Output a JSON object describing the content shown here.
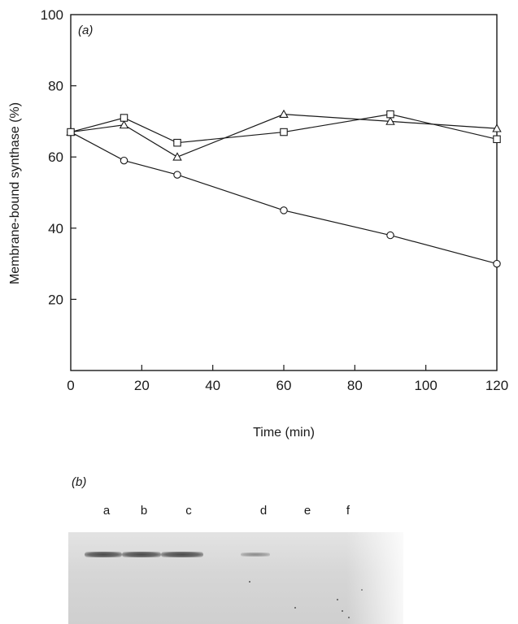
{
  "chart_data": {
    "type": "line",
    "panel_label": "(a)",
    "xlabel": "Time (min)",
    "ylabel": "Membrane-bound synthase (%)",
    "xlim": [
      0,
      120
    ],
    "ylim": [
      0,
      100
    ],
    "x_ticks": [
      0,
      20,
      40,
      60,
      80,
      100,
      120
    ],
    "y_ticks": [
      20,
      40,
      60,
      80,
      100
    ],
    "grid": false,
    "series": [
      {
        "marker": "circle",
        "x": [
          0,
          15,
          30,
          60,
          90,
          120
        ],
        "values": [
          67,
          59,
          55,
          45,
          38,
          30
        ]
      },
      {
        "marker": "triangle",
        "x": [
          0,
          15,
          30,
          60,
          90,
          120
        ],
        "values": [
          67,
          69,
          60,
          72,
          70,
          68
        ]
      },
      {
        "marker": "square",
        "x": [
          0,
          15,
          30,
          60,
          90,
          120
        ],
        "values": [
          67,
          71,
          64,
          67,
          72,
          65
        ]
      }
    ]
  },
  "panel_b": {
    "label": "(b)",
    "lanes": [
      "a",
      "b",
      "c",
      "d",
      "e",
      "f"
    ]
  }
}
